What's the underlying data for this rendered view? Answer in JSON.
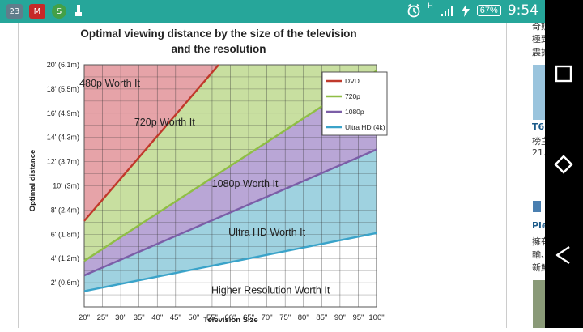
{
  "status_bar": {
    "notification_count": "23",
    "battery_percent": "67%",
    "time": "9:54",
    "signal_label": "H",
    "icons": [
      "notification-count-icon",
      "mcafee-icon",
      "s-app-icon",
      "usb-icon",
      "alarm-icon",
      "signal-icon",
      "charging-icon"
    ]
  },
  "side_snippets": [
    {
      "text": "奇妙"
    },
    {
      "text": "極致"
    },
    {
      "text": "震撼"
    },
    {
      "text": "T6"
    },
    {
      "text": "榜主"
    },
    {
      "text": "21."
    },
    {
      "text": "Ple"
    },
    {
      "text": "擁有"
    },
    {
      "text": "輸、"
    },
    {
      "text": "新鮮"
    }
  ],
  "chart_data": {
    "type": "line",
    "title": "Optimal viewing distance by the size of the television",
    "subtitle": "and the resolution",
    "xlabel": "Television Size",
    "ylabel": "Optimal distance",
    "x": [
      20,
      100
    ],
    "x_ticks": [
      "20\"",
      "25\"",
      "30\"",
      "35\"",
      "40\"",
      "45\"",
      "50\"",
      "55\"",
      "60\"",
      "65\"",
      "70\"",
      "75\"",
      "80\"",
      "85\"",
      "90\"",
      "95\"",
      "100\""
    ],
    "y_ticks": [
      "2' (0.6m)",
      "4' (1.2m)",
      "6' (1.8m)",
      "8' (2.4m)",
      "10' (3m)",
      "12' (3.7m)",
      "14' (4.3m)",
      "16' (4.9m)",
      "18' (5.5m)",
      "20' (6.1m)"
    ],
    "xlim": [
      20,
      100
    ],
    "ylim": [
      0,
      20
    ],
    "series": [
      {
        "name": "DVD",
        "color": "#c0392b",
        "x": [
          20,
          56.8
        ],
        "y": [
          7.1,
          20
        ]
      },
      {
        "name": "720p",
        "color": "#8fbe45",
        "x": [
          20,
          100
        ],
        "y": [
          3.8,
          19.5
        ]
      },
      {
        "name": "1080p",
        "color": "#7b5ea7",
        "x": [
          20,
          100
        ],
        "y": [
          2.6,
          13.0
        ]
      },
      {
        "name": "Ultra HD (4k)",
        "color": "#3aa3c9",
        "x": [
          20,
          100
        ],
        "y": [
          1.3,
          6.1
        ]
      }
    ],
    "regions": [
      {
        "label": "480p Worth It",
        "color": "#e6a3a8"
      },
      {
        "label": "720p Worth It",
        "color": "#c8dfa0"
      },
      {
        "label": "1080p Worth It",
        "color": "#b9a6d6"
      },
      {
        "label": "Ultra HD Worth It",
        "color": "#9fd2e0"
      },
      {
        "label": "Higher Resolution Worth It",
        "color": "#ffffff"
      }
    ],
    "grid": true,
    "legend_position": "top-right"
  }
}
